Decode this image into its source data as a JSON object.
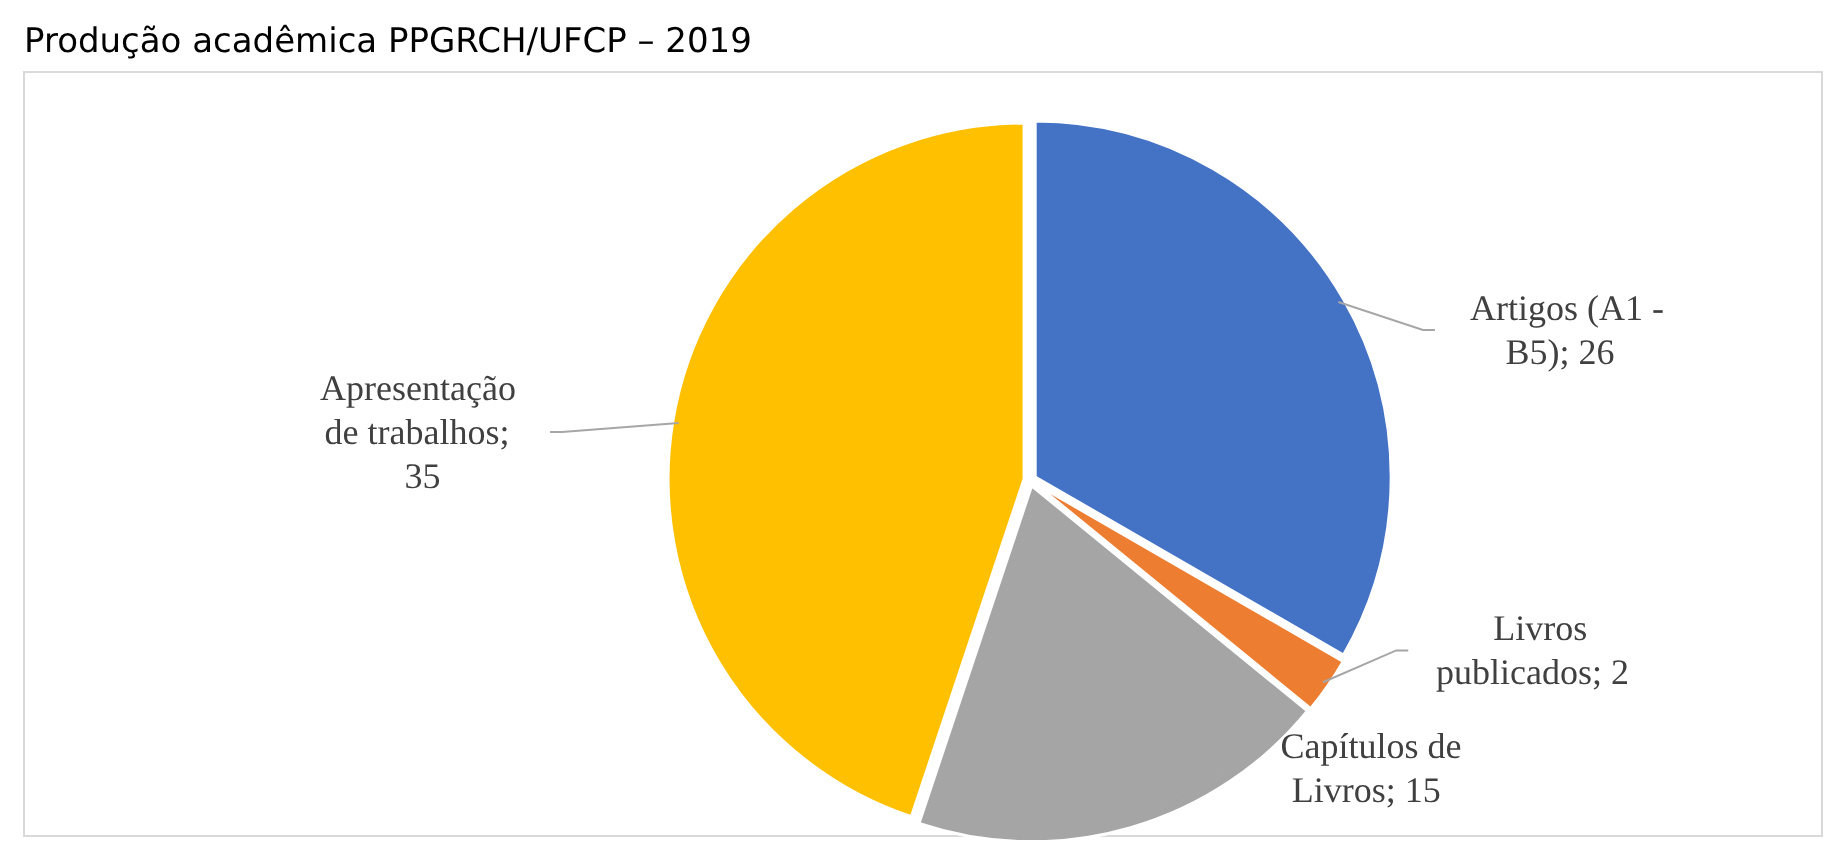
{
  "chart_data": {
    "type": "pie",
    "title": "Produção acadêmica PPGRCH/UFCP – 2019",
    "categories": [
      "Artigos (A1 - B5)",
      "Livros publicados",
      "Capítulos de Livros",
      "Apresentação de trabalhos"
    ],
    "values": [
      26,
      2,
      15,
      35
    ],
    "colors": [
      "#4472c4",
      "#ed7d31",
      "#a5a5a5",
      "#ffc000"
    ],
    "value_labels": [
      "; 26",
      "; 2",
      "; 15",
      "; 35"
    ]
  }
}
